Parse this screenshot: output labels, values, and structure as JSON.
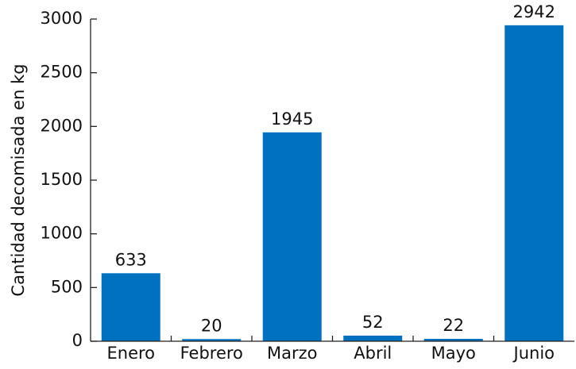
{
  "chart_data": {
    "type": "bar",
    "y_label": "Cantidad decomisada en kg",
    "categories": [
      "Enero",
      "Febrero",
      "Marzo",
      "Abril",
      "Mayo",
      "Junio"
    ],
    "values": [
      633,
      20,
      1945,
      52,
      22,
      2942
    ],
    "color": "#0070c0",
    "ylim": [
      0,
      3000
    ],
    "yticks": [
      0,
      500,
      1000,
      1500,
      2000,
      2500,
      3000
    ],
    "grid": false,
    "data_labels": true
  }
}
